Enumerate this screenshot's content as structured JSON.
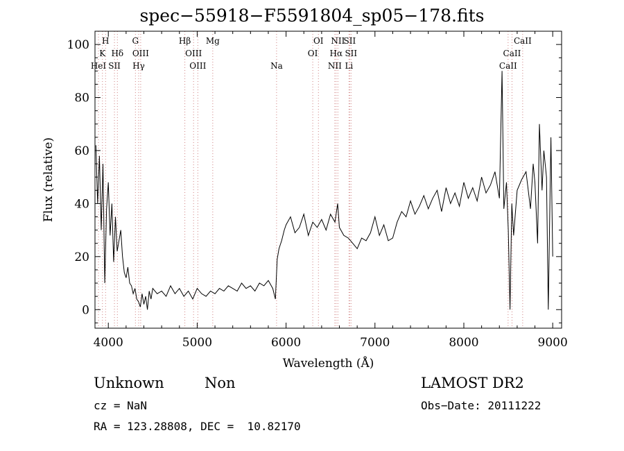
{
  "chart_data": {
    "type": "line",
    "title": "spec−55918−F5591804_sp05−178.fits",
    "xlabel": "Wavelength (Å)",
    "ylabel": "Flux (relative)",
    "xlim": [
      3850,
      9100
    ],
    "ylim": [
      -7,
      105
    ],
    "x_ticks": [
      4000,
      5000,
      6000,
      7000,
      8000,
      9000
    ],
    "y_ticks": [
      0,
      20,
      40,
      60,
      80,
      100
    ],
    "grid": false,
    "series": [
      {
        "x": [
          3860,
          3880,
          3900,
          3920,
          3940,
          3960,
          3980,
          4000,
          4020,
          4040,
          4060,
          4080,
          4100,
          4120,
          4140,
          4160,
          4180,
          4200,
          4220,
          4240,
          4260,
          4280,
          4300,
          4320,
          4340,
          4360,
          4380,
          4400,
          4420,
          4440,
          4460,
          4480,
          4500,
          4550,
          4600,
          4650,
          4700,
          4750,
          4800,
          4850,
          4900,
          4950,
          5000,
          5050,
          5100,
          5150,
          5200,
          5250,
          5300,
          5350,
          5400,
          5450,
          5500,
          5550,
          5600,
          5650,
          5700,
          5750,
          5800,
          5850,
          5880,
          5900,
          5920,
          5950,
          5980,
          6000,
          6050,
          6100,
          6150,
          6200,
          6250,
          6300,
          6350,
          6400,
          6450,
          6500,
          6550,
          6580,
          6600,
          6650,
          6700,
          6750,
          6800,
          6850,
          6900,
          6950,
          7000,
          7050,
          7100,
          7150,
          7200,
          7250,
          7300,
          7350,
          7400,
          7450,
          7500,
          7550,
          7600,
          7650,
          7700,
          7750,
          7800,
          7850,
          7900,
          7950,
          8000,
          8050,
          8100,
          8150,
          8200,
          8250,
          8300,
          8350,
          8400,
          8430,
          8450,
          8480,
          8500,
          8520,
          8540,
          8560,
          8600,
          8650,
          8700,
          8750,
          8780,
          8800,
          8830,
          8850,
          8880,
          8900,
          8930,
          8950,
          8980,
          9000
        ],
        "y": [
          62,
          40,
          58,
          30,
          55,
          10,
          38,
          48,
          28,
          40,
          18,
          35,
          22,
          26,
          30,
          20,
          14,
          12,
          16,
          10,
          9,
          6,
          8,
          4,
          3,
          1,
          6,
          2,
          5,
          0,
          7,
          4,
          8,
          6,
          7,
          5,
          9,
          6,
          8,
          5,
          7,
          4,
          8,
          6,
          5,
          7,
          6,
          8,
          7,
          9,
          8,
          7,
          10,
          8,
          9,
          7,
          10,
          9,
          11,
          8,
          4,
          19,
          23,
          26,
          30,
          32,
          35,
          29,
          31,
          36,
          28,
          33,
          31,
          34,
          30,
          36,
          33,
          40,
          31,
          28,
          27,
          25,
          23,
          27,
          26,
          29,
          35,
          28,
          32,
          26,
          27,
          33,
          37,
          35,
          41,
          36,
          39,
          43,
          38,
          42,
          45,
          37,
          46,
          40,
          44,
          39,
          48,
          42,
          46,
          41,
          50,
          44,
          47,
          52,
          42,
          90,
          38,
          48,
          30,
          0,
          40,
          28,
          45,
          49,
          52,
          38,
          55,
          48,
          25,
          70,
          45,
          60,
          50,
          0,
          65,
          20
        ]
      }
    ],
    "line_labels": [
      {
        "label": "H",
        "wavelength": 3969,
        "row": 0
      },
      {
        "label": "K",
        "wavelength": 3934,
        "row": 1
      },
      {
        "label": "HeI",
        "wavelength": 3889,
        "row": 2
      },
      {
        "label": "Hδ",
        "wavelength": 4102,
        "row": 1
      },
      {
        "label": "SII",
        "wavelength": 4069,
        "row": 2
      },
      {
        "label": "G",
        "wavelength": 4305,
        "row": 0
      },
      {
        "label": "OIII",
        "wavelength": 4364,
        "row": 1
      },
      {
        "label": "Hγ",
        "wavelength": 4341,
        "row": 2
      },
      {
        "label": "Hβ",
        "wavelength": 4861,
        "row": 0
      },
      {
        "label": "OIII",
        "wavelength": 4959,
        "row": 1
      },
      {
        "label": "OIII",
        "wavelength": 5007,
        "row": 2
      },
      {
        "label": "Mg",
        "wavelength": 5175,
        "row": 0
      },
      {
        "label": "Na",
        "wavelength": 5893,
        "row": 2
      },
      {
        "label": "OI",
        "wavelength": 6364,
        "row": 0
      },
      {
        "label": "OI",
        "wavelength": 6300,
        "row": 1
      },
      {
        "label": "NII",
        "wavelength": 6583,
        "row": 0
      },
      {
        "label": "SII",
        "wavelength": 6716,
        "row": 0
      },
      {
        "label": "Hα",
        "wavelength": 6563,
        "row": 1
      },
      {
        "label": "SII",
        "wavelength": 6731,
        "row": 1
      },
      {
        "label": "NII",
        "wavelength": 6548,
        "row": 2
      },
      {
        "label": "Li",
        "wavelength": 6708,
        "row": 2
      },
      {
        "label": "CaII",
        "wavelength": 8662,
        "row": 0
      },
      {
        "label": "CaII",
        "wavelength": 8542,
        "row": 1
      },
      {
        "label": "CaII",
        "wavelength": 8498,
        "row": 2
      }
    ]
  },
  "info": {
    "class_label": "Unknown",
    "subclass_label": "Non",
    "survey": "LAMOST DR2",
    "redshift": "cz = NaN",
    "obs_date": "Obs−Date: 20111222",
    "coords": "RA = 123.28808, DEC =  10.82170"
  }
}
